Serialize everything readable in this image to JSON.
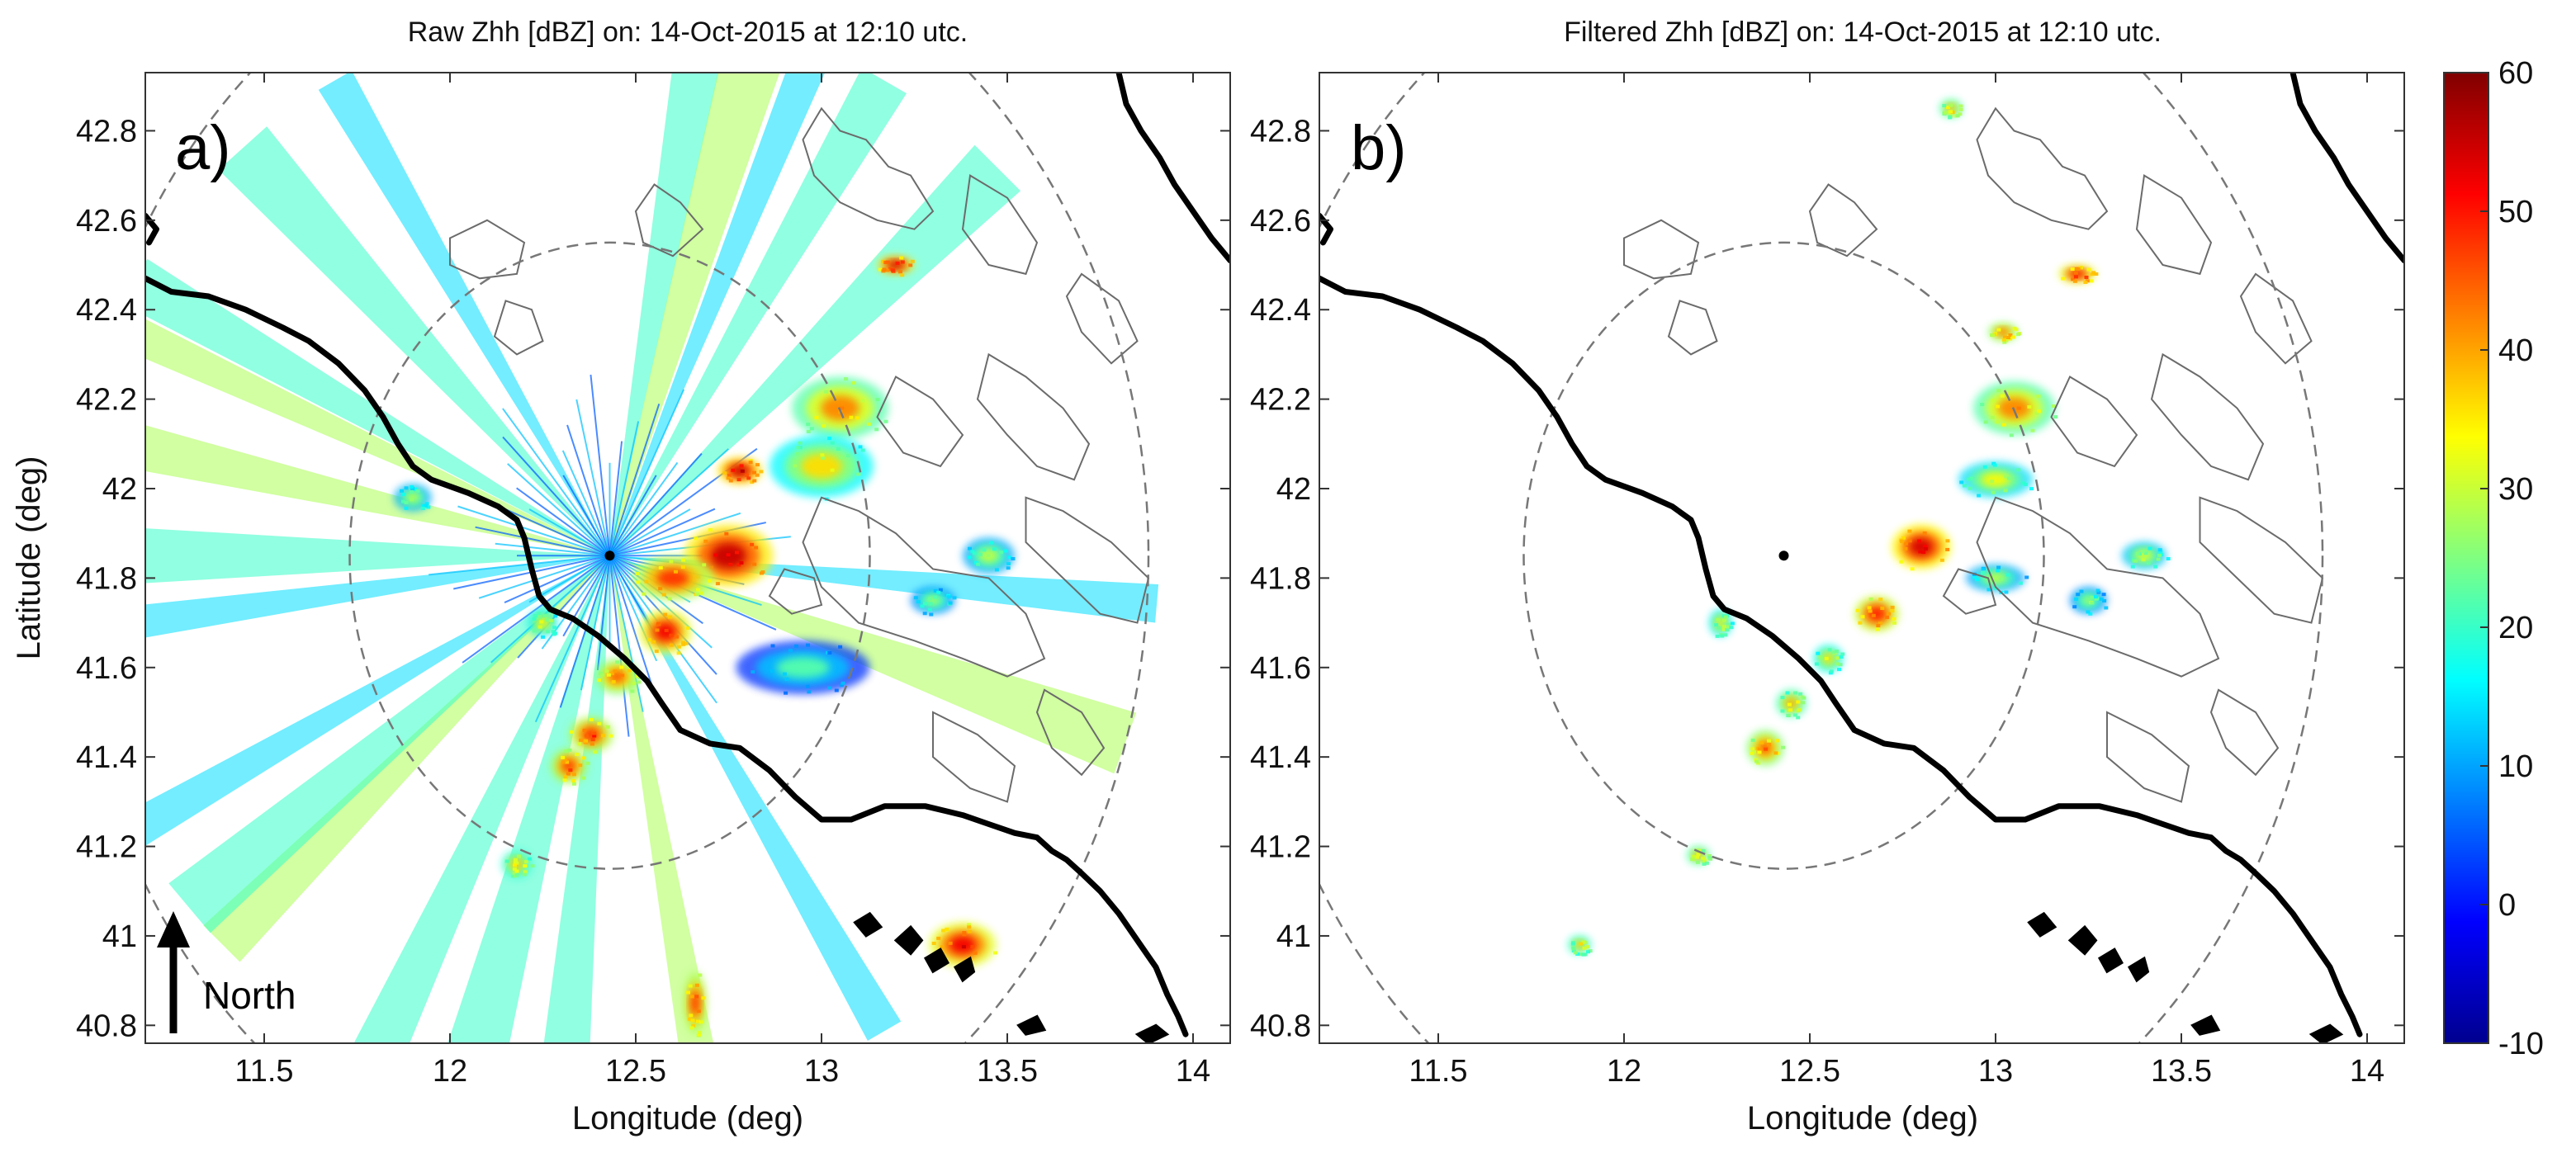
{
  "chart_data": [
    {
      "type": "heatmap",
      "panel_label": "a)",
      "title": "Raw Zhh [dBZ] on: 14-Oct-2015 at 12:10 utc.",
      "xlabel": "Longitude (deg)",
      "ylabel": "Latitude (deg)",
      "xlim": [
        11.18,
        14.1
      ],
      "ylim": [
        40.76,
        42.93
      ],
      "xticks": [
        11.5,
        12,
        12.5,
        13,
        13.5,
        14
      ],
      "xtick_labels": [
        "11.5",
        "12",
        "12.5",
        "13",
        "13.5",
        "14"
      ],
      "yticks": [
        40.8,
        41,
        41.2,
        41.4,
        41.6,
        41.8,
        42,
        42.2,
        42.4,
        42.6,
        42.8
      ],
      "ytick_labels": [
        "40.8",
        "41",
        "41.2",
        "41.4",
        "41.6",
        "41.8",
        "42",
        "42.2",
        "42.4",
        "42.6",
        "42.8"
      ],
      "north_label": "North",
      "radar_center": [
        12.43,
        41.85
      ],
      "range_rings_deg": [
        0.7,
        1.45
      ],
      "radial_spokes_deg": [
        295,
        300,
        270,
        262,
        283,
        318,
        330,
        10,
        16,
        22,
        30,
        45,
        170,
        185,
        195,
        150,
        225,
        230,
        240,
        205,
        110,
        95
      ],
      "echo_cells": [
        {
          "lon": 12.75,
          "lat": 41.85,
          "dbz": 55,
          "spread_lon": 0.12,
          "spread_lat": 0.07
        },
        {
          "lon": 12.6,
          "lat": 41.8,
          "dbz": 48,
          "spread_lon": 0.11,
          "spread_lat": 0.05
        },
        {
          "lon": 12.58,
          "lat": 41.68,
          "dbz": 52,
          "spread_lon": 0.07,
          "spread_lat": 0.05
        },
        {
          "lon": 12.45,
          "lat": 41.58,
          "dbz": 45,
          "spread_lon": 0.06,
          "spread_lat": 0.04
        },
        {
          "lon": 12.38,
          "lat": 41.45,
          "dbz": 48,
          "spread_lon": 0.06,
          "spread_lat": 0.04
        },
        {
          "lon": 12.32,
          "lat": 41.38,
          "dbz": 47,
          "spread_lon": 0.05,
          "spread_lat": 0.04
        },
        {
          "lon": 13.05,
          "lat": 42.18,
          "dbz": 42,
          "spread_lon": 0.13,
          "spread_lat": 0.07
        },
        {
          "lon": 13.0,
          "lat": 42.05,
          "dbz": 36,
          "spread_lon": 0.14,
          "spread_lat": 0.07
        },
        {
          "lon": 13.2,
          "lat": 42.5,
          "dbz": 55,
          "spread_lon": 0.05,
          "spread_lat": 0.02
        },
        {
          "lon": 12.78,
          "lat": 42.04,
          "dbz": 55,
          "spread_lon": 0.06,
          "spread_lat": 0.03
        },
        {
          "lon": 13.38,
          "lat": 40.98,
          "dbz": 52,
          "spread_lon": 0.09,
          "spread_lat": 0.05
        },
        {
          "lon": 12.66,
          "lat": 40.85,
          "dbz": 48,
          "spread_lon": 0.03,
          "spread_lat": 0.07
        },
        {
          "lon": 12.25,
          "lat": 41.7,
          "dbz": 35,
          "spread_lon": 0.04,
          "spread_lat": 0.03
        },
        {
          "lon": 12.18,
          "lat": 41.16,
          "dbz": 38,
          "spread_lon": 0.04,
          "spread_lat": 0.03
        },
        {
          "lon": 11.9,
          "lat": 41.98,
          "dbz": 30,
          "spread_lon": 0.05,
          "spread_lat": 0.03
        },
        {
          "lon": 13.45,
          "lat": 41.85,
          "dbz": 30,
          "spread_lon": 0.07,
          "spread_lat": 0.04
        },
        {
          "lon": 13.3,
          "lat": 41.75,
          "dbz": 28,
          "spread_lon": 0.06,
          "spread_lat": 0.03
        },
        {
          "lon": 12.95,
          "lat": 41.6,
          "dbz": 22,
          "spread_lon": 0.18,
          "spread_lat": 0.06
        }
      ]
    },
    {
      "type": "heatmap",
      "panel_label": "b)",
      "title": "Filtered Zhh [dBZ] on: 14-Oct-2015 at 12:10 utc.",
      "xlabel": "Longitude (deg)",
      "ylabel": "",
      "xlim": [
        11.18,
        14.1
      ],
      "ylim": [
        40.76,
        42.93
      ],
      "xticks": [
        11.5,
        12,
        12.5,
        13,
        13.5,
        14
      ],
      "xtick_labels": [
        "11.5",
        "12",
        "12.5",
        "13",
        "13.5",
        "14"
      ],
      "yticks": [
        40.8,
        41,
        41.2,
        41.4,
        41.6,
        41.8,
        42,
        42.2,
        42.4,
        42.6,
        42.8
      ],
      "ytick_labels": [
        "40.8",
        "41",
        "41.2",
        "41.4",
        "41.6",
        "41.8",
        "42",
        "42.2",
        "42.4",
        "42.6",
        "42.8"
      ],
      "radar_center": [
        12.43,
        41.85
      ],
      "range_rings_deg": [
        0.7,
        1.45
      ],
      "echo_cells": [
        {
          "lon": 12.8,
          "lat": 41.87,
          "dbz": 54,
          "spread_lon": 0.08,
          "spread_lat": 0.05
        },
        {
          "lon": 12.68,
          "lat": 41.72,
          "dbz": 50,
          "spread_lon": 0.06,
          "spread_lat": 0.04
        },
        {
          "lon": 12.55,
          "lat": 41.62,
          "dbz": 36,
          "spread_lon": 0.04,
          "spread_lat": 0.03
        },
        {
          "lon": 12.45,
          "lat": 41.52,
          "dbz": 40,
          "spread_lon": 0.04,
          "spread_lat": 0.03
        },
        {
          "lon": 12.38,
          "lat": 41.42,
          "dbz": 45,
          "spread_lon": 0.05,
          "spread_lat": 0.04
        },
        {
          "lon": 13.05,
          "lat": 42.18,
          "dbz": 42,
          "spread_lon": 0.11,
          "spread_lat": 0.06
        },
        {
          "lon": 13.0,
          "lat": 42.02,
          "dbz": 34,
          "spread_lon": 0.1,
          "spread_lat": 0.04
        },
        {
          "lon": 13.22,
          "lat": 42.48,
          "dbz": 52,
          "spread_lon": 0.05,
          "spread_lat": 0.02
        },
        {
          "lon": 13.02,
          "lat": 42.35,
          "dbz": 45,
          "spread_lon": 0.04,
          "spread_lat": 0.02
        },
        {
          "lon": 12.26,
          "lat": 41.7,
          "dbz": 35,
          "spread_lon": 0.03,
          "spread_lat": 0.03
        },
        {
          "lon": 12.2,
          "lat": 41.18,
          "dbz": 40,
          "spread_lon": 0.03,
          "spread_lat": 0.02
        },
        {
          "lon": 11.88,
          "lat": 40.98,
          "dbz": 38,
          "spread_lon": 0.03,
          "spread_lat": 0.02
        },
        {
          "lon": 13.4,
          "lat": 41.85,
          "dbz": 32,
          "spread_lon": 0.06,
          "spread_lat": 0.03
        },
        {
          "lon": 13.25,
          "lat": 41.75,
          "dbz": 28,
          "spread_lon": 0.05,
          "spread_lat": 0.03
        },
        {
          "lon": 12.88,
          "lat": 42.85,
          "dbz": 40,
          "spread_lon": 0.03,
          "spread_lat": 0.02
        },
        {
          "lon": 13.0,
          "lat": 41.8,
          "dbz": 30,
          "spread_lon": 0.08,
          "spread_lat": 0.03
        }
      ]
    },
    {
      "type": "colorbar",
      "ticks": [
        -10,
        0,
        10,
        20,
        30,
        40,
        50,
        60
      ],
      "tick_labels": [
        "-10",
        "0",
        "10",
        "20",
        "30",
        "40",
        "50",
        "60"
      ],
      "range": [
        -10,
        60
      ],
      "colormap": "jet",
      "colormap_stops": [
        "#00008f",
        "#0000ff",
        "#0080ff",
        "#00ffff",
        "#80ff80",
        "#ffff00",
        "#ff8000",
        "#ff0000",
        "#800000"
      ]
    }
  ]
}
